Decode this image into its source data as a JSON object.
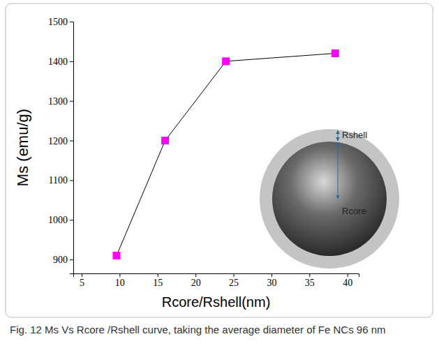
{
  "chart_data": {
    "type": "line",
    "x_label": "Rcore/Rshell(nm)",
    "y_label": "Ms (emu/g)",
    "caption": "Fig. 12 Ms Vs Rcore /Rshell curve, taking the average diameter of Fe NCs 96 nm",
    "annotations": [
      "Rshell",
      "Rcore"
    ],
    "x": [
      9.6,
      16,
      24,
      38.4
    ],
    "series": [
      {
        "color": "#ff00ff",
        "values": [
          910,
          1200,
          1400,
          1420
        ],
        "marker": "square",
        "line_style": "solid"
      }
    ],
    "xlim": [
      3.9,
      41.5
    ],
    "xticks": [
      5,
      10,
      15,
      20,
      25,
      30,
      35,
      40
    ],
    "ylim": [
      865,
      1500
    ],
    "yticks": [
      900,
      1000,
      1100,
      1200,
      1300,
      1400,
      1500
    ],
    "grid": false
  }
}
